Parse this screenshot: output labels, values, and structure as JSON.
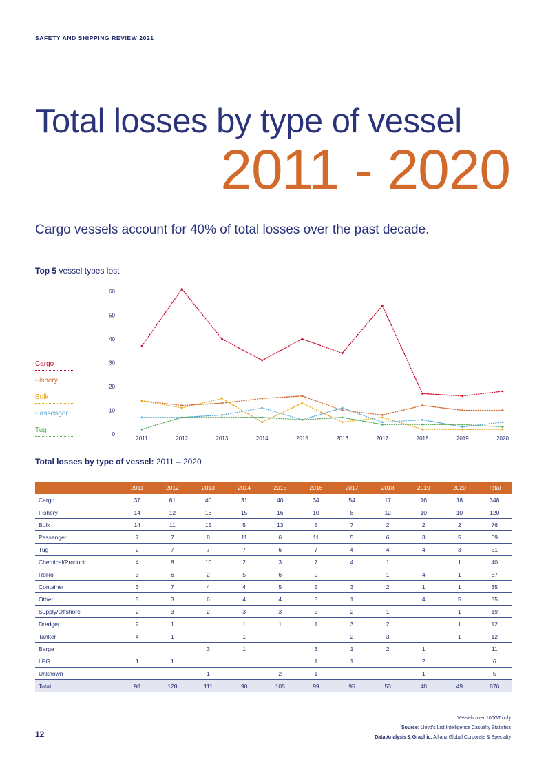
{
  "header": {
    "tag": "SAFETY AND SHIPPING REVIEW 2021"
  },
  "title": {
    "main": "Total losses by type of vessel",
    "years": "2011 - 2020"
  },
  "subtitle": "Cargo vessels account for 40% of total losses over the past decade.",
  "chart_caption": {
    "bold": "Top 5",
    "rest": " vessel types lost"
  },
  "chart_data": {
    "type": "line",
    "title": "Top 5 vessel types lost",
    "x": [
      "2011",
      "2012",
      "2013",
      "2014",
      "2015",
      "2016",
      "2017",
      "2018",
      "2019",
      "2020"
    ],
    "ylim": [
      0,
      60
    ],
    "yticks": [
      "0",
      "10",
      "20",
      "30",
      "40",
      "50",
      "60"
    ],
    "legend_position": "left",
    "series": [
      {
        "name": "Cargo",
        "color": "#c8102e",
        "values": [
          37,
          61,
          40,
          31,
          40,
          34,
          54,
          17,
          16,
          18
        ]
      },
      {
        "name": "Fishery",
        "color": "#d16a2a",
        "values": [
          14,
          12,
          13,
          15,
          16,
          10,
          8,
          12,
          10,
          10
        ]
      },
      {
        "name": "Bulk",
        "color": "#e8a317",
        "values": [
          14,
          11,
          15,
          5,
          13,
          5,
          7,
          2,
          2,
          2
        ]
      },
      {
        "name": "Passenger",
        "color": "#5aa7d9",
        "values": [
          7,
          7,
          8,
          11,
          6,
          11,
          5,
          6,
          3,
          5
        ]
      },
      {
        "name": "Tug",
        "color": "#57a65a",
        "values": [
          2,
          7,
          7,
          7,
          6,
          7,
          4,
          4,
          4,
          3
        ]
      }
    ]
  },
  "table": {
    "caption_bold": "Total losses by type of vessel:",
    "caption_rest": " 2011 – 2020",
    "headers": [
      "",
      "2011",
      "2012",
      "2013",
      "2014",
      "2015",
      "2016",
      "2017",
      "2018",
      "2019",
      "2020",
      "Total"
    ],
    "rows": [
      [
        "Cargo",
        "37",
        "61",
        "40",
        "31",
        "40",
        "34",
        "54",
        "17",
        "16",
        "18",
        "348"
      ],
      [
        "Fishery",
        "14",
        "12",
        "13",
        "15",
        "16",
        "10",
        "8",
        "12",
        "10",
        "10",
        "120"
      ],
      [
        "Bulk",
        "14",
        "11",
        "15",
        "5",
        "13",
        "5",
        "7",
        "2",
        "2",
        "2",
        "76"
      ],
      [
        "Passenger",
        "7",
        "7",
        "8",
        "11",
        "6",
        "11",
        "5",
        "6",
        "3",
        "5",
        "69"
      ],
      [
        "Tug",
        "2",
        "7",
        "7",
        "7",
        "6",
        "7",
        "4",
        "4",
        "4",
        "3",
        "51"
      ],
      [
        "Chemical/Product",
        "4",
        "8",
        "10",
        "2",
        "3",
        "7",
        "4",
        "1",
        "",
        "1",
        "40"
      ],
      [
        "RoRo",
        "3",
        "6",
        "2",
        "5",
        "6",
        "9",
        "",
        "1",
        "4",
        "1",
        "37"
      ],
      [
        "Container",
        "3",
        "7",
        "4",
        "4",
        "5",
        "5",
        "3",
        "2",
        "1",
        "1",
        "35"
      ],
      [
        "Other",
        "5",
        "3",
        "6",
        "4",
        "4",
        "3",
        "1",
        "",
        "4",
        "5",
        "35"
      ],
      [
        "Supply/Offshore",
        "2",
        "3",
        "2",
        "3",
        "3",
        "2",
        "2",
        "1",
        "",
        "1",
        "19"
      ],
      [
        "Dredger",
        "2",
        "1",
        "",
        "1",
        "1",
        "1",
        "3",
        "2",
        "",
        "1",
        "12"
      ],
      [
        "Tanker",
        "4",
        "1",
        "",
        "1",
        "",
        "",
        "2",
        "3",
        "",
        "1",
        "12"
      ],
      [
        "Barge",
        "",
        "",
        "3",
        "1",
        "",
        "3",
        "1",
        "2",
        "1",
        "",
        "11"
      ],
      [
        "LPG",
        "1",
        "1",
        "",
        "",
        "",
        "1",
        "1",
        "",
        "2",
        "",
        "6"
      ],
      [
        "Unknown",
        "",
        "",
        "1",
        "",
        "2",
        "1",
        "",
        "",
        "1",
        "",
        "5"
      ]
    ],
    "total_row": [
      "Total",
      "98",
      "128",
      "111",
      "90",
      "105",
      "99",
      "95",
      "53",
      "48",
      "49",
      "876"
    ]
  },
  "notes": {
    "vessels_note": "Vessels over 100GT only",
    "source_label": "Source:",
    "source_text": " Lloyd’s List Intelligence Casualty Statistics",
    "analysis_label": "Data Analysis & Graphic:",
    "analysis_text": " Allianz Global Corporate & Specialty"
  },
  "page_number": "12"
}
